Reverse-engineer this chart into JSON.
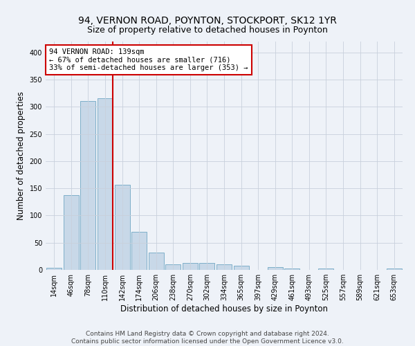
{
  "title_line1": "94, VERNON ROAD, POYNTON, STOCKPORT, SK12 1YR",
  "title_line2": "Size of property relative to detached houses in Poynton",
  "xlabel": "Distribution of detached houses by size in Poynton",
  "ylabel": "Number of detached properties",
  "footer_line1": "Contains HM Land Registry data © Crown copyright and database right 2024.",
  "footer_line2": "Contains public sector information licensed under the Open Government Licence v3.0.",
  "categories": [
    "14sqm",
    "46sqm",
    "78sqm",
    "110sqm",
    "142sqm",
    "174sqm",
    "206sqm",
    "238sqm",
    "270sqm",
    "302sqm",
    "334sqm",
    "365sqm",
    "397sqm",
    "429sqm",
    "461sqm",
    "493sqm",
    "525sqm",
    "557sqm",
    "589sqm",
    "621sqm",
    "653sqm"
  ],
  "values": [
    4,
    137,
    311,
    316,
    157,
    70,
    32,
    10,
    13,
    13,
    10,
    8,
    0,
    5,
    3,
    0,
    2,
    0,
    0,
    0,
    2
  ],
  "bar_color": "#c8d8e8",
  "bar_edge_color": "#5a9aba",
  "highlight_bar_index": 3,
  "highlight_line_color": "#cc0000",
  "annotation_text": "94 VERNON ROAD: 139sqm\n← 67% of detached houses are smaller (716)\n33% of semi-detached houses are larger (353) →",
  "annotation_box_color": "#ffffff",
  "annotation_box_edge_color": "#cc0000",
  "ylim": [
    0,
    420
  ],
  "yticks": [
    0,
    50,
    100,
    150,
    200,
    250,
    300,
    350,
    400
  ],
  "grid_color": "#c8d0dc",
  "background_color": "#eef2f8",
  "title_fontsize": 10,
  "subtitle_fontsize": 9,
  "axis_label_fontsize": 8.5,
  "tick_fontsize": 7,
  "footer_fontsize": 6.5,
  "annotation_fontsize": 7.5
}
